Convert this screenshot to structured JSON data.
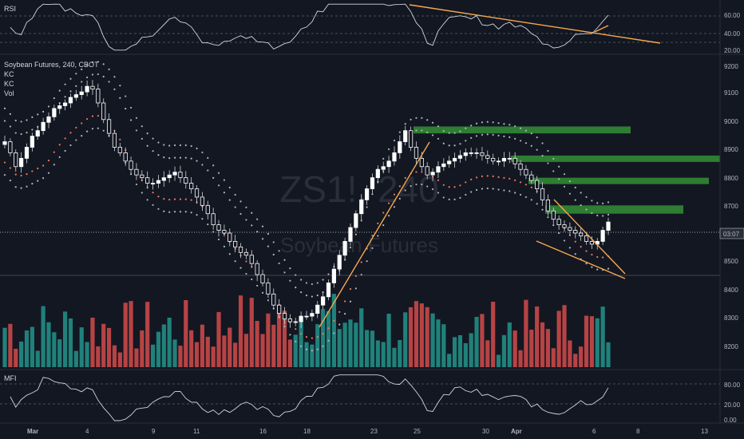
{
  "panels": {
    "rsi": {
      "label": "RSI",
      "ticks": [
        "60.00",
        "40.00",
        "20.00"
      ]
    },
    "price": {
      "title": "Soybean Futures, 240, CBOT",
      "indicators": [
        "KC",
        "KC",
        "Vol"
      ],
      "watermark_symbol": "ZS1!, 240",
      "watermark_name": "Soybean Futures",
      "ticks": [
        "9200",
        "9100",
        "9000",
        "8900",
        "8800",
        "8700",
        "8500",
        "8400",
        "8300",
        "8200"
      ],
      "countdown": "03:07"
    },
    "mfi": {
      "label": "MFI",
      "ticks": [
        "80.00",
        "20.00",
        "0.00"
      ]
    }
  },
  "x_axis": {
    "labels": [
      "Mar",
      "4",
      "9",
      "11",
      "16",
      "18",
      "23",
      "25",
      "30",
      "Apr",
      "6",
      "8",
      "13"
    ]
  },
  "colors": {
    "bull": "#ffffff",
    "bear": "#ffffff",
    "vol_up": "#26a69a",
    "vol_down": "#ef5350",
    "keltner_outer": "#b2b5be",
    "keltner_inner": "#ef7a5a",
    "trendline": "#f6a94e",
    "zones": "#2e7d32"
  },
  "chart_data": {
    "type": "candlestick",
    "interval": "240",
    "price_ylim": [
      8100,
      9230
    ],
    "rsi_ylim": [
      15,
      75
    ],
    "mfi_ylim": [
      0,
      95
    ],
    "closes": [
      8920,
      8880,
      8830,
      8860,
      8900,
      8940,
      8960,
      8990,
      9010,
      9040,
      9050,
      9060,
      9080,
      9090,
      9100,
      9120,
      9110,
      9060,
      9000,
      8950,
      8900,
      8880,
      8850,
      8820,
      8800,
      8790,
      8770,
      8770,
      8780,
      8790,
      8800,
      8810,
      8790,
      8770,
      8750,
      8720,
      8690,
      8660,
      8620,
      8600,
      8590,
      8560,
      8540,
      8520,
      8510,
      8480,
      8440,
      8410,
      8370,
      8330,
      8300,
      8280,
      8270,
      8270,
      8290,
      8290,
      8300,
      8330,
      8360,
      8410,
      8460,
      8510,
      8560,
      8610,
      8660,
      8710,
      8750,
      8790,
      8820,
      8830,
      8850,
      8880,
      8920,
      8960,
      8900,
      8860,
      8830,
      8800,
      8810,
      8830,
      8840,
      8850,
      8860,
      8870,
      8880,
      8880,
      8880,
      8870,
      8860,
      8850,
      8850,
      8860,
      8860,
      8840,
      8820,
      8800,
      8780,
      8750,
      8710,
      8670,
      8640,
      8620,
      8610,
      8600,
      8590,
      8580,
      8560,
      8550,
      8560,
      8600,
      8630
    ],
    "zones": [
      {
        "from": 8950,
        "to": 8975
      },
      {
        "from": 8850,
        "to": 8870
      },
      {
        "from": 8770,
        "to": 8790
      },
      {
        "from": 8660,
        "to": 8690
      }
    ]
  }
}
